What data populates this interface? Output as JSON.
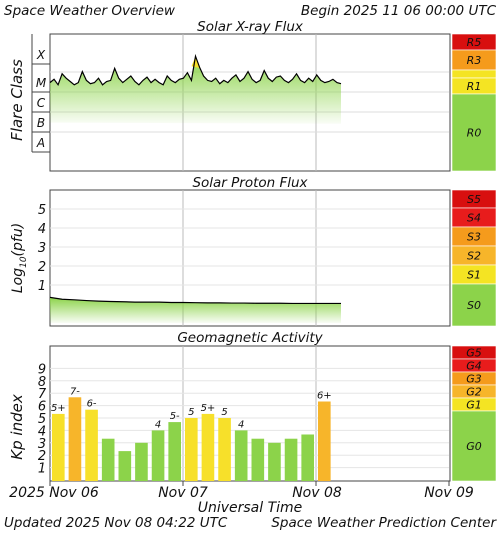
{
  "header": {
    "title": "Space Weather Overview",
    "begin": "Begin 2025 11 06 00:00 UTC"
  },
  "footer": {
    "updated": "Updated 2025 Nov 08 04:22 UTC",
    "credit": "Space Weather Prediction Center",
    "xlabel": "Universal Time",
    "xticks": [
      "2025 Nov 06",
      "Nov 07",
      "Nov 08",
      "Nov 09"
    ]
  },
  "colors": {
    "green": "#8cd34a",
    "yellow": "#f7e02a",
    "orange": "#f7b52a",
    "red": "#e81c1c",
    "scale_yellow": "#f4e423",
    "scale_orange": "#f59b1c",
    "scale_red": "#d80f0f",
    "trace": "#000000"
  },
  "chart_data": [
    {
      "type": "area",
      "title": "Solar X-ray Flux",
      "ylabel": "Flare Class",
      "yticks": [
        "X",
        "M",
        "C",
        "B",
        "A"
      ],
      "scale": [
        "R5",
        "R3",
        "R1",
        "R0"
      ],
      "x": [
        0,
        1,
        2,
        3,
        4,
        5,
        6,
        7,
        8,
        9,
        10,
        11,
        12,
        13,
        14,
        15,
        16,
        17,
        18,
        19,
        20,
        21,
        22,
        23,
        24,
        25,
        26,
        27,
        28,
        29,
        30,
        31,
        32,
        33,
        34,
        35,
        36,
        37,
        38,
        39,
        40,
        41,
        42,
        43,
        44,
        45,
        46,
        47,
        48,
        49,
        50,
        51,
        52,
        53,
        54,
        55,
        56,
        57,
        58,
        59,
        60,
        61,
        62,
        63,
        64,
        65,
        66,
        67,
        68,
        69,
        70,
        71,
        72
      ],
      "xunit": "hours since 2025 Nov 06 00:00 UTC",
      "level_class": [
        2.7,
        2.85,
        2.6,
        3.1,
        2.9,
        2.75,
        2.6,
        2.7,
        3.2,
        2.8,
        2.65,
        2.7,
        2.9,
        2.6,
        2.75,
        2.8,
        3.35,
        2.9,
        2.7,
        2.85,
        3.0,
        2.75,
        2.6,
        2.8,
        2.95,
        2.7,
        2.85,
        2.7,
        2.6,
        3.0,
        2.8,
        2.7,
        2.85,
        2.9,
        3.15,
        2.8,
        3.9,
        3.4,
        3.0,
        2.8,
        2.75,
        2.9,
        2.65,
        2.8,
        2.7,
        2.9,
        3.05,
        2.75,
        2.9,
        3.2,
        2.85,
        2.7,
        2.8,
        3.25,
        2.9,
        2.75,
        2.95,
        3.0,
        2.8,
        2.7,
        2.85,
        3.1,
        2.8,
        2.7,
        2.9,
        2.75,
        3.05,
        2.8,
        2.7,
        2.75,
        2.85,
        2.7,
        2.65
      ]
    },
    {
      "type": "area",
      "title": "Solar Proton Flux",
      "ylabel": "Log10(pfu)",
      "yticks": [
        "5",
        "4",
        "3",
        "2",
        "1"
      ],
      "ylim": [
        -1,
        6
      ],
      "scale": [
        "S5",
        "S4",
        "S3",
        "S2",
        "S1",
        "S0"
      ],
      "x": [
        0,
        3,
        6,
        9,
        12,
        15,
        18,
        21,
        24,
        27,
        30,
        33,
        36,
        39,
        42,
        45,
        48,
        51,
        54,
        57,
        60,
        63,
        66,
        69,
        72
      ],
      "values": [
        0.35,
        0.25,
        0.22,
        0.18,
        0.15,
        0.13,
        0.12,
        0.1,
        0.1,
        0.1,
        0.08,
        0.08,
        0.07,
        0.06,
        0.06,
        0.05,
        0.05,
        0.04,
        0.04,
        0.04,
        0.03,
        0.03,
        0.03,
        0.03,
        0.03
      ]
    },
    {
      "type": "bar",
      "title": "Geomagnetic Activity",
      "ylabel": "Kp index",
      "yticks": [
        "9",
        "8",
        "7",
        "6",
        "5",
        "4",
        "3",
        "2",
        "1"
      ],
      "ylim": [
        0,
        10
      ],
      "scale": [
        "G5",
        "G4",
        "G3",
        "G2",
        "G1",
        "G0"
      ],
      "values": [
        5.33,
        6.67,
        5.67,
        3.33,
        2.33,
        3.0,
        4.0,
        4.67,
        5.0,
        5.33,
        5.0,
        4.0,
        3.33,
        3.0,
        3.33,
        3.67,
        6.33
      ],
      "labels": [
        "5+",
        "7-",
        "6-",
        "",
        "",
        "",
        "4",
        "5-",
        "5",
        "5+",
        "5",
        "4",
        "",
        "",
        "",
        "",
        "6+"
      ]
    }
  ]
}
